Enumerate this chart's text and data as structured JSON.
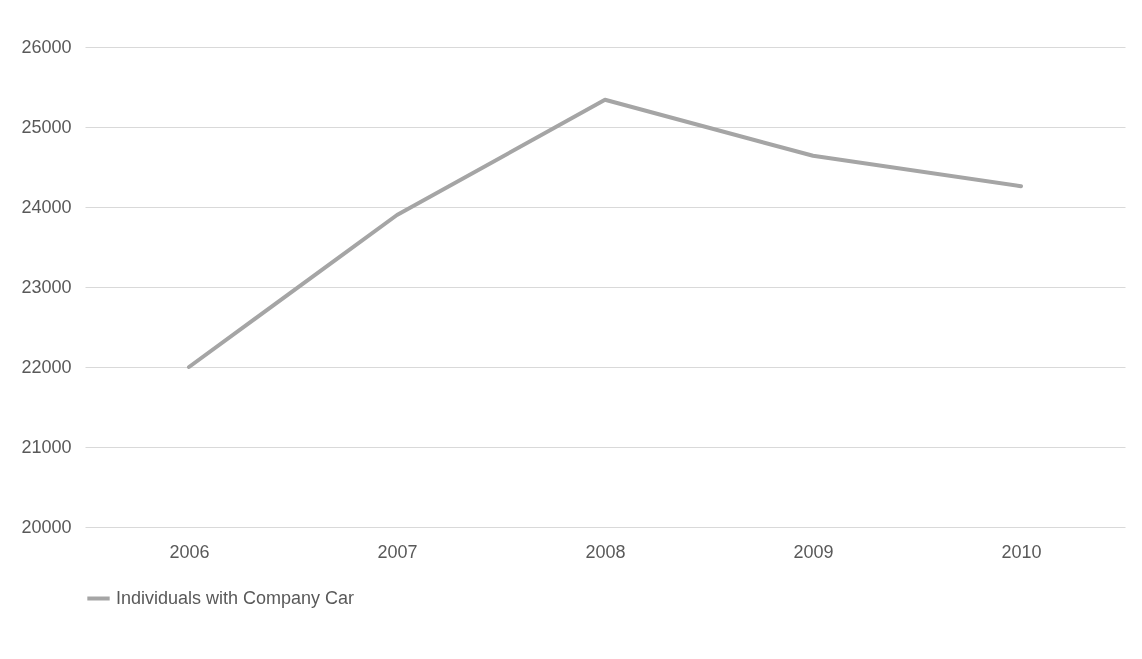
{
  "chart_data": {
    "type": "line",
    "categories": [
      "2006",
      "2007",
      "2008",
      "2009",
      "2010"
    ],
    "series": [
      {
        "name": "Individuals with Company Car",
        "color": "#a5a5a5",
        "values": [
          22000,
          23900,
          25340,
          24640,
          24260
        ]
      }
    ],
    "ylim": [
      20000,
      26000
    ],
    "yticks": [
      20000,
      21000,
      22000,
      23000,
      24000,
      25000,
      26000
    ],
    "grid": "y",
    "legend": "bottom",
    "marker": "none"
  }
}
